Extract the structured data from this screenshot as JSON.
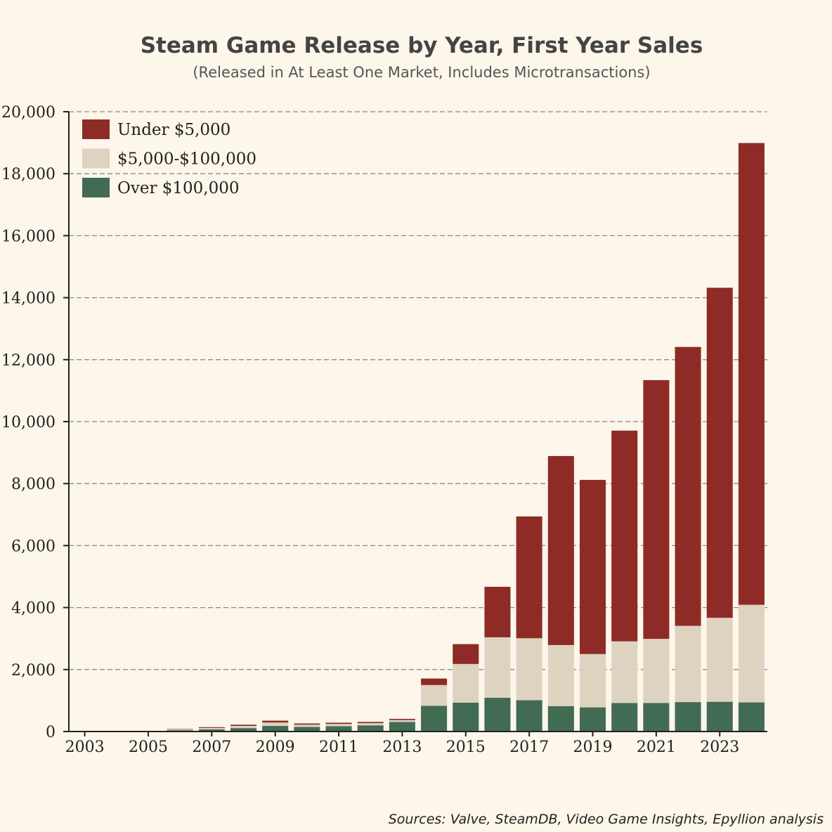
{
  "chart_data": {
    "type": "bar",
    "stacked": true,
    "title": "Steam Game Release by Year, First Year Sales",
    "subtitle": "(Released in At Least One Market, Includes Microtransactions)",
    "xlabel": "",
    "ylabel": "",
    "ylim": [
      0,
      20000
    ],
    "yticks": [
      0,
      2000,
      4000,
      6000,
      8000,
      10000,
      12000,
      14000,
      16000,
      18000,
      20000
    ],
    "ytick_labels": [
      "0",
      "2,000",
      "4,000",
      "6,000",
      "8,000",
      "10,000",
      "12,000",
      "14,000",
      "16,000",
      "18,000",
      "20,000"
    ],
    "grid": true,
    "legend_position": "top-left",
    "categories": [
      "2003",
      "2004",
      "2005",
      "2006",
      "2007",
      "2008",
      "2009",
      "2010",
      "2011",
      "2012",
      "2013",
      "2014",
      "2015",
      "2016",
      "2017",
      "2018",
      "2019",
      "2020",
      "2021",
      "2022",
      "2023",
      "2024"
    ],
    "xtick_labels": [
      "2003",
      "2005",
      "2007",
      "2009",
      "2011",
      "2013",
      "2015",
      "2017",
      "2019",
      "2021",
      "2023"
    ],
    "series": [
      {
        "name": "Over $100,000",
        "color": "#426b54",
        "values": [
          3,
          5,
          10,
          40,
          70,
          110,
          180,
          150,
          170,
          200,
          310,
          830,
          930,
          1090,
          1010,
          820,
          780,
          920,
          920,
          950,
          960,
          940
        ]
      },
      {
        "name": "$5,000-$100,000",
        "color": "#ddd3c0",
        "values": [
          2,
          3,
          8,
          25,
          45,
          70,
          110,
          70,
          75,
          70,
          60,
          670,
          1250,
          1950,
          2000,
          1970,
          1720,
          1990,
          2070,
          2460,
          2710,
          3150
        ]
      },
      {
        "name": "Under $5,000",
        "color": "#8e2b26",
        "values": [
          0,
          0,
          2,
          15,
          25,
          40,
          60,
          40,
          40,
          40,
          40,
          210,
          640,
          1630,
          3930,
          6100,
          5620,
          6800,
          8350,
          9000,
          10650,
          14900
        ]
      }
    ],
    "legend_order": [
      "Under $5,000",
      "$5,000-$100,000",
      "Over $100,000"
    ],
    "source": "Sources: Valve, SteamDB, Video Game Insights, Epyllion analysis"
  }
}
